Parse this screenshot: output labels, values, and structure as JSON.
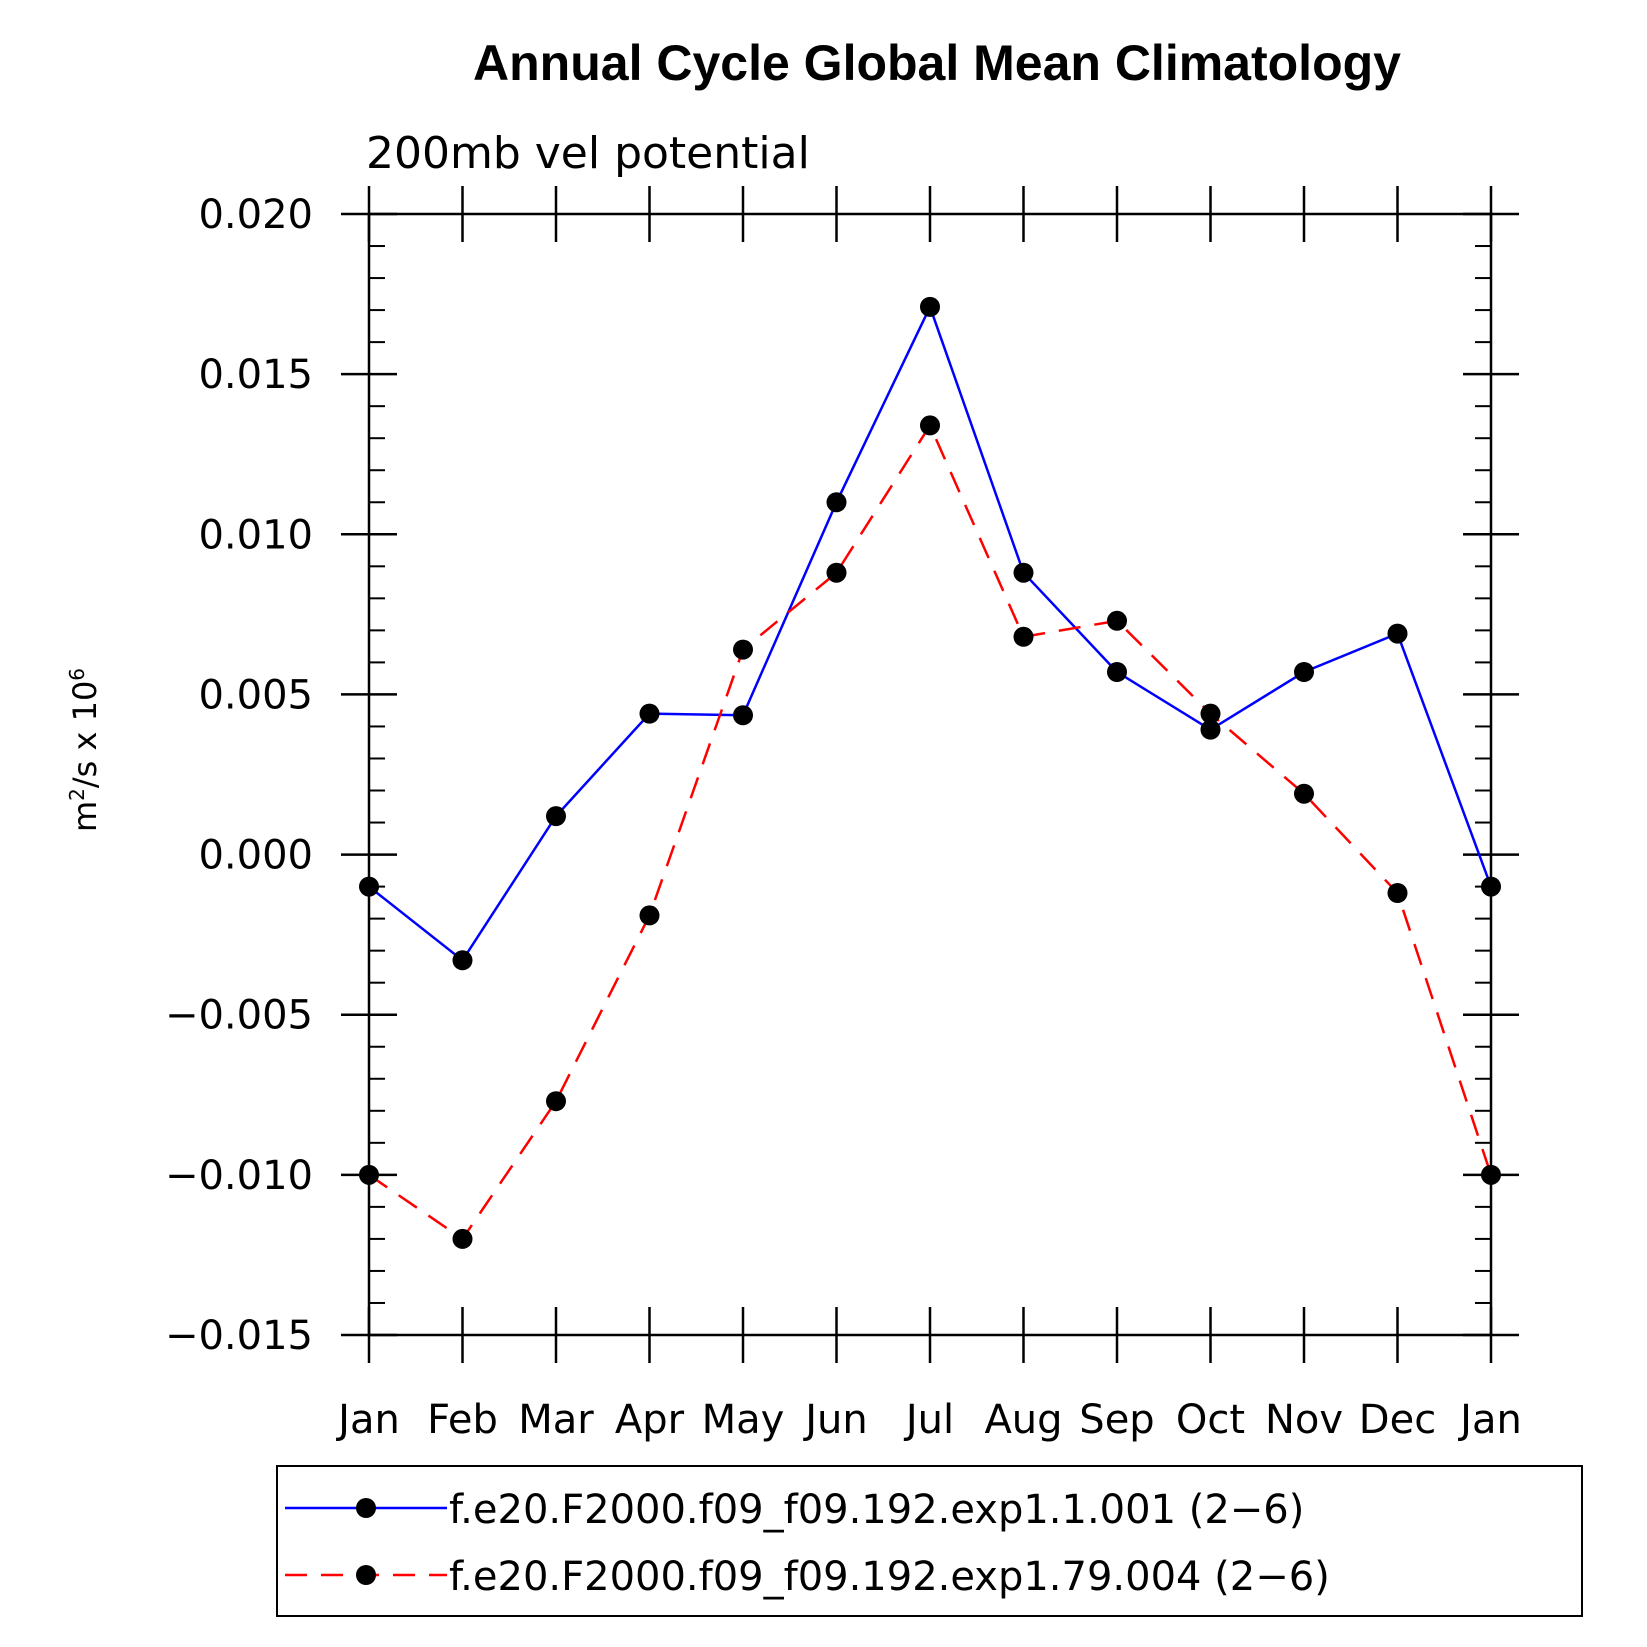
{
  "chart_data": {
    "type": "line",
    "title": "Annual Cycle Global Mean Climatology",
    "subtitle": "200mb vel potential",
    "ylabel": {
      "base": "m",
      "exp1": "2",
      "mid": "/s x 10",
      "exp2": "6"
    },
    "ylim": [
      -0.015,
      0.02
    ],
    "yticks": [
      -0.015,
      -0.01,
      -0.005,
      0.0,
      0.005,
      0.01,
      0.015,
      0.02
    ],
    "ytick_labels": [
      "−0.015",
      "−0.010",
      "−0.005",
      "0.000",
      "0.005",
      "0.010",
      "0.015",
      "0.020"
    ],
    "categories": [
      "Jan",
      "Feb",
      "Mar",
      "Apr",
      "May",
      "Jun",
      "Jul",
      "Aug",
      "Sep",
      "Oct",
      "Nov",
      "Dec",
      "Jan"
    ],
    "series": [
      {
        "name": "f.e20.F2000.f09_f09.192.exp1.1.001 (2−6)",
        "color": "#0000ff",
        "dash": "solid",
        "values": [
          -0.001,
          -0.0033,
          0.0012,
          0.0044,
          0.00435,
          0.011,
          0.0171,
          0.0088,
          0.0057,
          0.0039,
          0.0057,
          0.0069,
          -0.001
        ]
      },
      {
        "name": "f.e20.F2000.f09_f09.192.exp1.79.004 (2−6)",
        "color": "#ff0000",
        "dash": "dashed",
        "values": [
          -0.01,
          -0.012,
          -0.0077,
          -0.0019,
          0.0064,
          0.0088,
          0.0134,
          0.0068,
          0.0073,
          0.0044,
          0.0019,
          -0.0012,
          -0.01
        ]
      }
    ]
  }
}
